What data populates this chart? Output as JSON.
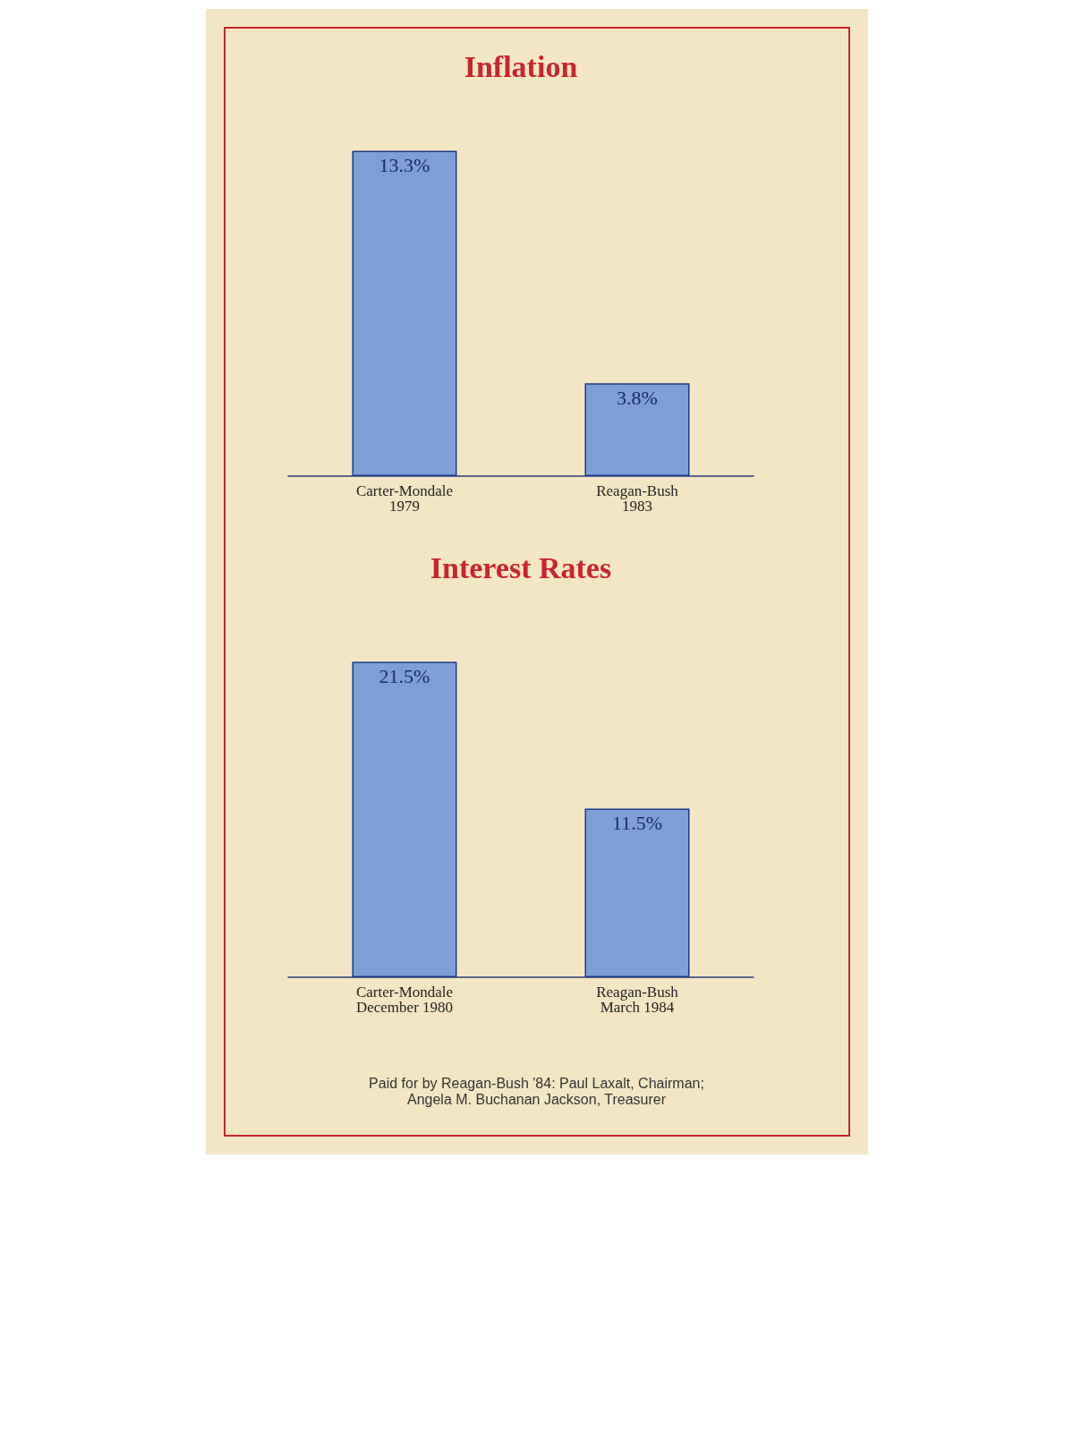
{
  "chart_data": [
    {
      "type": "bar",
      "title": "Inflation",
      "categories": [
        "Carter-Mondale\n1979",
        "Reagan-Bush\n1983"
      ],
      "values": [
        13.3,
        3.8
      ],
      "value_labels": [
        "13.3%",
        "3.8%"
      ],
      "color": "#7f9fd9"
    },
    {
      "type": "bar",
      "title": "Interest Rates",
      "categories": [
        "Carter-Mondale\nDecember 1980",
        "Reagan-Bush\nMarch 1984"
      ],
      "values": [
        21.5,
        11.5
      ],
      "value_labels": [
        "21.5%",
        "11.5%"
      ],
      "color": "#7f9fd9",
      "annotations": [
        "Paid for by Reagan-Bush '84: Paul Laxalt, Chairman;\nAngela M. Buchanan Jackson, Treasurer"
      ]
    }
  ]
}
